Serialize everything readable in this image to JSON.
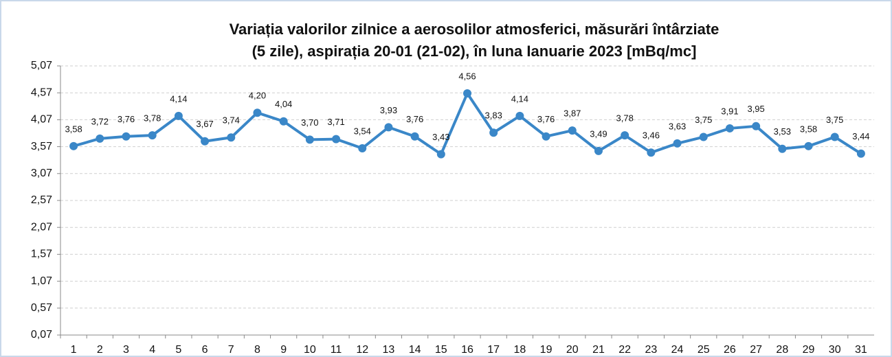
{
  "chart_data": {
    "type": "line",
    "title": [
      "Variația valorilor zilnice a aerosolilor atmosferici, măsurări întârziate",
      "(5 zile), aspirația 20-01 (21-02),  în luna Ianuarie 2023 [mBq/mc]"
    ],
    "categories": [
      "1",
      "2",
      "3",
      "4",
      "5",
      "6",
      "7",
      "8",
      "9",
      "10",
      "11",
      "12",
      "13",
      "14",
      "15",
      "16",
      "17",
      "18",
      "19",
      "20",
      "21",
      "22",
      "23",
      "24",
      "25",
      "26",
      "27",
      "28",
      "29",
      "30",
      "31"
    ],
    "series": [
      {
        "name": "Aerosoli",
        "color": "#3a87c8",
        "values": [
          3.58,
          3.72,
          3.76,
          3.78,
          4.14,
          3.67,
          3.74,
          4.2,
          4.04,
          3.7,
          3.71,
          3.54,
          3.93,
          3.76,
          3.43,
          4.56,
          3.83,
          4.14,
          3.76,
          3.87,
          3.49,
          3.78,
          3.46,
          3.63,
          3.75,
          3.91,
          3.95,
          3.53,
          3.58,
          3.75,
          3.44
        ],
        "value_labels": [
          "3,58",
          "3,72",
          "3,76",
          "3,78",
          "4,14",
          "3,67",
          "3,74",
          "4,20",
          "4,04",
          "3,70",
          "3,71",
          "3,54",
          "3,93",
          "3,76",
          "3,43",
          "4,56",
          "3,83",
          "4,14",
          "3,76",
          "3,87",
          "3,49",
          "3,78",
          "3,46",
          "3,63",
          "3,75",
          "3,91",
          "3,95",
          "3,53",
          "3,58",
          "3,75",
          "3,44"
        ]
      }
    ],
    "ylim": [
      0.07,
      5.07
    ],
    "yticks": [
      {
        "value": 0.07,
        "label": "0,07"
      },
      {
        "value": 0.57,
        "label": "0,57"
      },
      {
        "value": 1.07,
        "label": "1,07"
      },
      {
        "value": 1.57,
        "label": "1,57"
      },
      {
        "value": 2.07,
        "label": "2,07"
      },
      {
        "value": 2.57,
        "label": "2,57"
      },
      {
        "value": 3.07,
        "label": "3,07"
      },
      {
        "value": 3.57,
        "label": "3,57"
      },
      {
        "value": 4.07,
        "label": "4,07"
      },
      {
        "value": 4.57,
        "label": "4,57"
      },
      {
        "value": 5.07,
        "label": "5,07"
      }
    ],
    "grid": true
  }
}
